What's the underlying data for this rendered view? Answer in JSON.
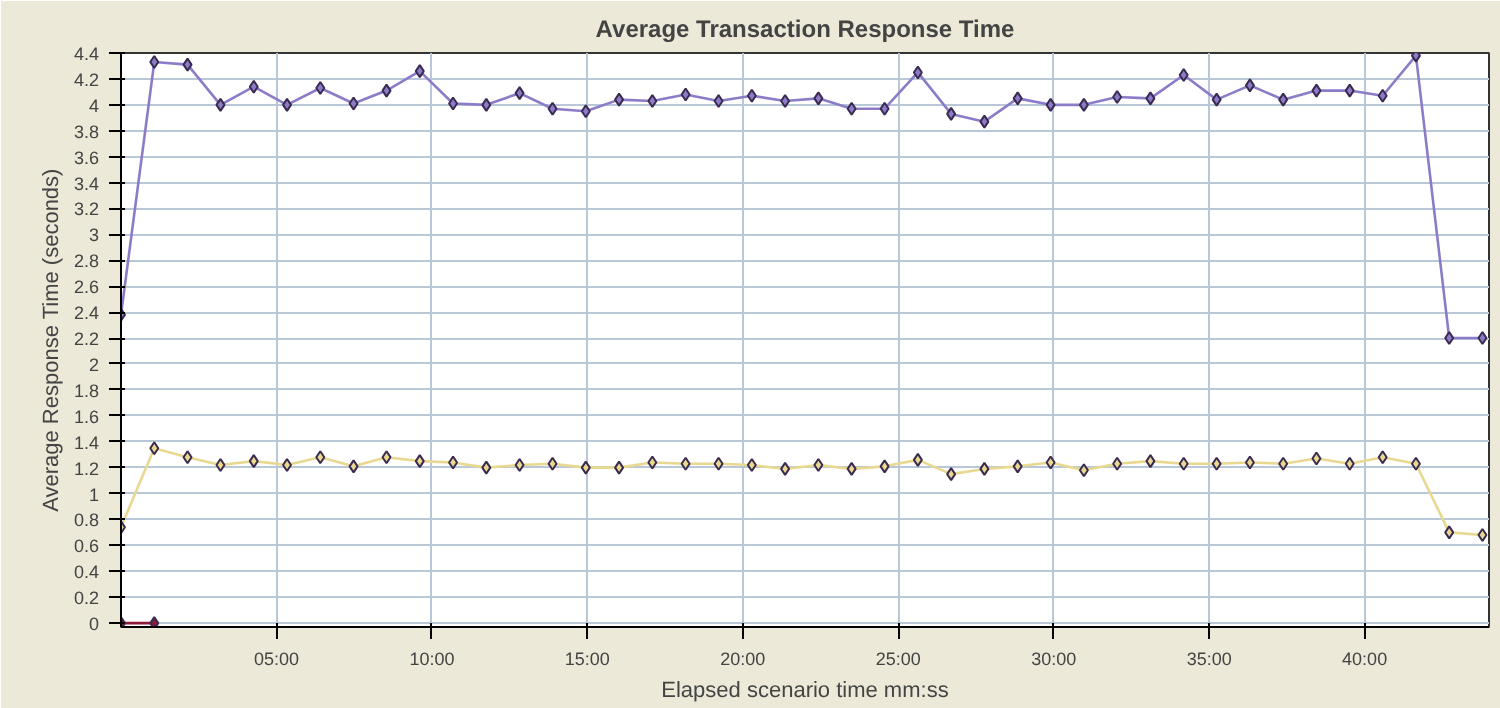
{
  "chart_data": {
    "type": "line",
    "title": "Average Transaction Response Time",
    "xlabel": "Elapsed scenario time mm:ss",
    "ylabel": "Average Response Time (seconds)",
    "x": [
      0,
      1.07,
      2.14,
      3.2,
      4.27,
      5.34,
      6.41,
      7.48,
      8.54,
      9.61,
      10.68,
      11.75,
      12.82,
      13.88,
      14.95,
      16.02,
      17.09,
      18.16,
      19.22,
      20.29,
      21.36,
      22.43,
      23.5,
      24.56,
      25.63,
      26.7,
      27.77,
      28.84,
      29.9,
      30.97,
      32.04,
      33.11,
      34.18,
      35.24,
      36.31,
      37.38,
      38.45,
      39.52,
      40.58,
      41.65,
      42.72,
      43.79
    ],
    "series": [
      {
        "color": "#8c7cc8",
        "values": [
          2.38,
          4.33,
          4.31,
          4.0,
          4.14,
          4.0,
          4.13,
          4.01,
          4.11,
          4.26,
          4.01,
          4.0,
          4.09,
          3.97,
          3.95,
          4.04,
          4.03,
          4.08,
          4.03,
          4.07,
          4.03,
          4.05,
          3.97,
          3.97,
          4.25,
          3.93,
          3.87,
          4.05,
          4.0,
          4.0,
          4.06,
          4.05,
          4.23,
          4.04,
          4.15,
          4.04,
          4.11,
          4.11,
          4.07,
          4.38,
          2.2,
          2.2
        ]
      },
      {
        "color": "#e8d890",
        "values": [
          0.74,
          1.35,
          1.28,
          1.22,
          1.25,
          1.22,
          1.28,
          1.21,
          1.28,
          1.25,
          1.24,
          1.2,
          1.22,
          1.23,
          1.2,
          1.2,
          1.24,
          1.23,
          1.23,
          1.22,
          1.19,
          1.22,
          1.19,
          1.21,
          1.26,
          1.15,
          1.19,
          1.21,
          1.24,
          1.18,
          1.23,
          1.25,
          1.23,
          1.23,
          1.24,
          1.23,
          1.27,
          1.23,
          1.28,
          1.23,
          0.7,
          0.68
        ]
      },
      {
        "color": "#8b1a3a",
        "x": [
          0,
          1.07
        ],
        "values": [
          0,
          0
        ]
      }
    ],
    "xlim": [
      0,
      44
    ],
    "ylim": [
      -0.03,
      4.4
    ],
    "xticks": [
      {
        "value": 5,
        "label": "05:00"
      },
      {
        "value": 10,
        "label": "10:00"
      },
      {
        "value": 15,
        "label": "15:00"
      },
      {
        "value": 20,
        "label": "20:00"
      },
      {
        "value": 25,
        "label": "25:00"
      },
      {
        "value": 30,
        "label": "30:00"
      },
      {
        "value": 35,
        "label": "35:00"
      },
      {
        "value": 40,
        "label": "40:00"
      }
    ],
    "yticks": [
      0,
      0.2,
      0.4,
      0.6,
      0.8,
      1,
      1.2,
      1.4,
      1.6,
      1.8,
      2,
      2.2,
      2.4,
      2.6,
      2.8,
      3,
      3.2,
      3.4,
      3.6,
      3.8,
      4,
      4.2,
      4.4
    ],
    "grid": true,
    "marker": "diamond",
    "line_style": "solid"
  }
}
